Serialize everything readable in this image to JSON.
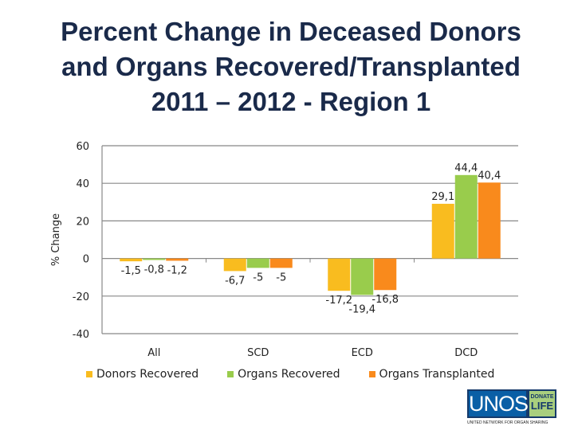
{
  "chart_data": {
    "type": "bar",
    "title": "Percent Change in Deceased Donors and Organs Recovered/Transplanted 2011 – 2012 - Region 1",
    "title_lines": [
      "Percent Change in Deceased Donors",
      "and Organs Recovered/Transplanted",
      "2011 – 2012 - Region 1"
    ],
    "xlabel": "",
    "ylabel": "% Change",
    "ylim": [
      -40,
      60
    ],
    "yticks": [
      60,
      40,
      20,
      0,
      -20,
      -40
    ],
    "grid": true,
    "legend_position": "bottom",
    "categories": [
      "All",
      "SCD",
      "ECD",
      "DCD"
    ],
    "series": [
      {
        "name": "Donors Recovered",
        "color": "#f9bc1f",
        "values": [
          -1.5,
          -6.7,
          -17.2,
          29.1
        ],
        "labels": [
          "-1,5",
          "-6,7",
          "-17,2",
          "29,1"
        ]
      },
      {
        "name": "Organs Recovered",
        "color": "#99cc4c",
        "values": [
          -0.8,
          -5,
          -19.4,
          44.4
        ],
        "labels": [
          "-0,8",
          "-5",
          "-19,4",
          "44,4"
        ]
      },
      {
        "name": "Organs Transplanted",
        "color": "#f98a1c",
        "values": [
          -1.2,
          -5,
          -16.8,
          40.4
        ],
        "labels": [
          "-1,2",
          "-5",
          "-16,8",
          "40,4"
        ]
      }
    ]
  },
  "logo": {
    "main": "UNOS",
    "donate": "DONATE",
    "life": "LIFE",
    "caption": "UNITED NETWORK FOR ORGAN SHARING"
  }
}
